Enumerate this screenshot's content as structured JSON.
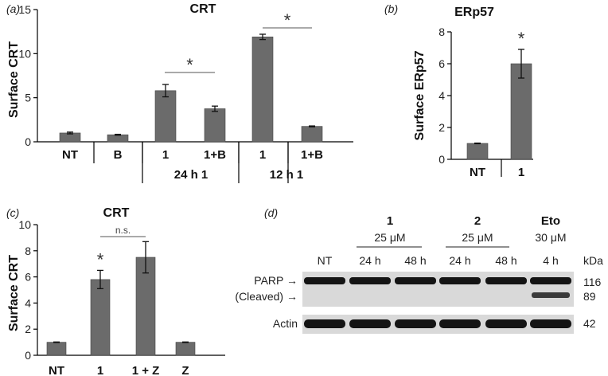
{
  "colors": {
    "bar": "#6b6b6b",
    "axis": "#000000",
    "blot_band": "#141414",
    "blot_bg": "#d9d9d9"
  },
  "chart_data": [
    {
      "panel": "(a)",
      "type": "bar",
      "title": "CRT",
      "ylabel": "Surface CRT",
      "ylim": [
        0,
        15
      ],
      "yticks": [
        0,
        5,
        10,
        15
      ],
      "categories": [
        "NT",
        "B",
        "1",
        "1+B",
        "1",
        "1+B"
      ],
      "group_labels": [
        "24 h 1",
        "12 h 1"
      ],
      "values": [
        1.0,
        0.8,
        5.8,
        3.75,
        11.9,
        1.75
      ],
      "errors": [
        0.1,
        0.05,
        0.7,
        0.3,
        0.3,
        0.05
      ],
      "significance": [
        {
          "between": [
            2,
            3
          ],
          "label": "*"
        },
        {
          "between": [
            4,
            5
          ],
          "label": "*"
        }
      ]
    },
    {
      "panel": "(b)",
      "type": "bar",
      "title": "ERp57",
      "ylabel": "Surface ERp57",
      "ylim": [
        0,
        8
      ],
      "yticks": [
        0,
        2,
        4,
        6,
        8
      ],
      "categories": [
        "NT",
        "1"
      ],
      "values": [
        1.0,
        6.0
      ],
      "errors": [
        0.02,
        0.9
      ],
      "significance": [
        {
          "index": 1,
          "label": "*"
        }
      ]
    },
    {
      "panel": "(c)",
      "type": "bar",
      "title": "CRT",
      "ylabel": "Surface CRT",
      "ylim": [
        0,
        10
      ],
      "yticks": [
        0,
        2,
        4,
        6,
        8,
        10
      ],
      "categories": [
        "NT",
        "1",
        "1 + Z",
        "Z"
      ],
      "values": [
        1.0,
        5.8,
        7.5,
        1.0
      ],
      "errors": [
        0.02,
        0.7,
        1.2,
        0.02
      ],
      "significance": [
        {
          "index": 1,
          "label": "*"
        },
        {
          "between": [
            1,
            2
          ],
          "label": "n.s."
        }
      ]
    }
  ],
  "blot": {
    "panel": "(d)",
    "groups": [
      {
        "name": "1",
        "dose": "25 μM"
      },
      {
        "name": "2",
        "dose": "25 μM"
      },
      {
        "name": "Eto",
        "dose": "30 μM"
      }
    ],
    "lanes": [
      "NT",
      "24 h",
      "48 h",
      "24 h",
      "48 h",
      "4 h"
    ],
    "kda_label": "kDa",
    "rows": [
      {
        "labels": [
          "PARP →",
          "(Cleaved) →"
        ],
        "kda": [
          "116",
          "89"
        ]
      },
      {
        "labels": [
          "Actin"
        ],
        "kda": [
          "42"
        ]
      }
    ]
  }
}
